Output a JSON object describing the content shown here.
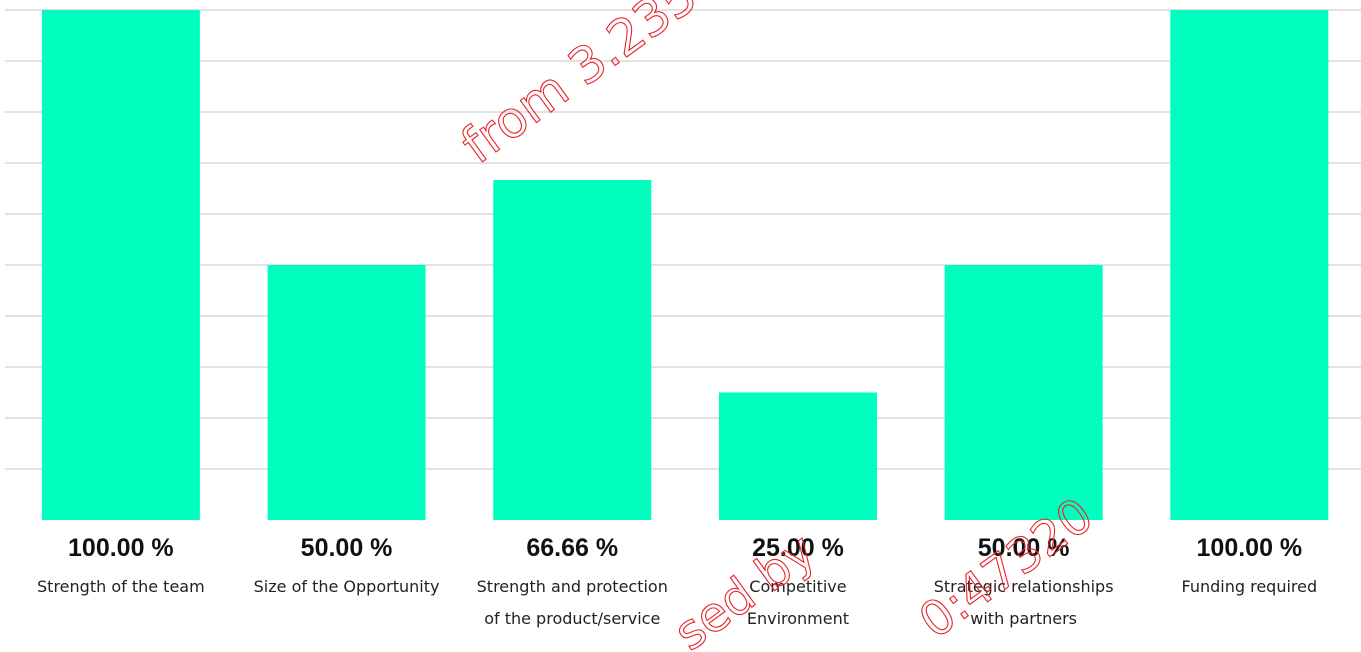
{
  "chart_data": {
    "type": "bar",
    "categories": [
      [
        "Strength of the team"
      ],
      [
        "Size of the Opportunity"
      ],
      [
        "Strength and protection",
        "of the product/service"
      ],
      [
        "Competitive",
        "Environment"
      ],
      [
        "Strategic relationships",
        "with partners"
      ],
      [
        "Funding required"
      ]
    ],
    "values": [
      100,
      50,
      66.66,
      25,
      50,
      100
    ],
    "value_labels": [
      "100.00 %",
      "50.00 %",
      "66.66 %",
      "25.00 %",
      "50.00 %",
      "100.00 %"
    ],
    "ylim": [
      0,
      100
    ],
    "grid": true,
    "bar_color": "#00ffbf",
    "grid_color": "#d9d9d9"
  },
  "watermark": {
    "fragments": [
      "from 3.235",
      "sed by",
      "0:47320"
    ],
    "color": "#e8232a"
  }
}
